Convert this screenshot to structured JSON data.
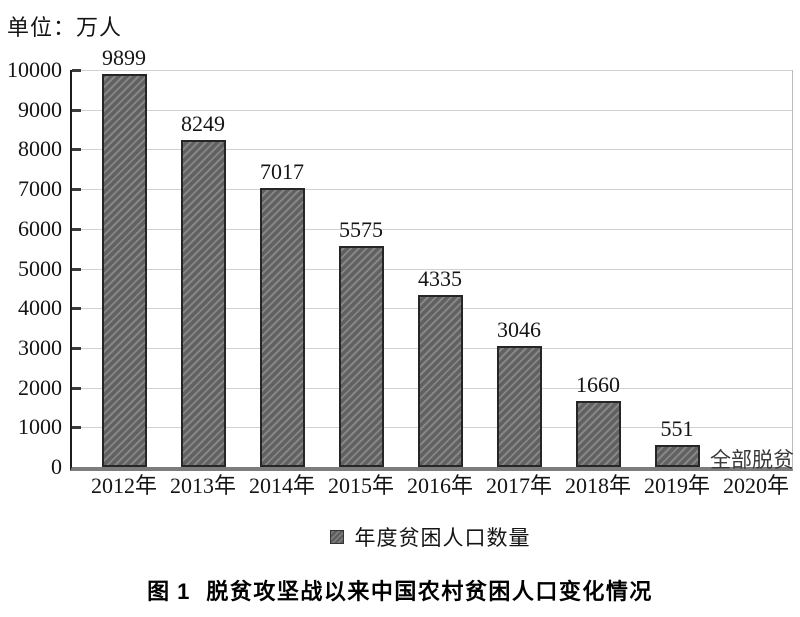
{
  "figure": {
    "unit_label": "单位：万人",
    "legend_label": "年度贫困人口数量",
    "caption_prefix": "图 1",
    "caption_text": "脱贫攻坚战以来中国农村贫困人口变化情况"
  },
  "chart_data": {
    "type": "bar",
    "title": "图1 脱贫攻坚战以来中国农村贫困人口变化情况",
    "unit": "万人",
    "categories": [
      "2012年",
      "2013年",
      "2014年",
      "2015年",
      "2016年",
      "2017年",
      "2018年",
      "2019年",
      "2020年"
    ],
    "series": [
      {
        "name": "年度贫困人口数量",
        "values": [
          9899,
          8249,
          7017,
          5575,
          4335,
          3046,
          1660,
          551,
          0
        ],
        "data_labels": [
          "9899",
          "8249",
          "7017",
          "5575",
          "4335",
          "3046",
          "1660",
          "551",
          ""
        ]
      }
    ],
    "annotations": [
      {
        "x": "2020年",
        "text": "全部脱贫"
      }
    ],
    "xlabel": "",
    "ylabel": "单位：万人",
    "ylim": [
      0,
      10000
    ],
    "ytick_step": 1000,
    "grid": "horizontal",
    "legend_position": "bottom",
    "colors": {
      "bar_fill": "#616161",
      "bar_hatch": "#868686",
      "bar_border": "#262626",
      "gridline": "#ced2d1",
      "axis": "#1c1c1c",
      "baseline": "#7d7d7d",
      "text": "#141414"
    }
  }
}
